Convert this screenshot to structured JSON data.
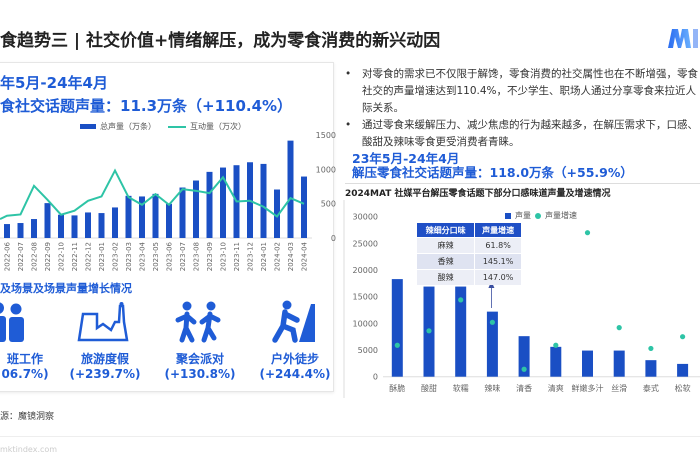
{
  "title": "食趋势三 | 社交价值+情绪解压，成为零食消费的新兴动因",
  "logo": {
    "text": "M",
    "colors": [
      "#2a6cf0",
      "#6ab0ff"
    ]
  },
  "left_panel": {
    "period": "年5月-24年4月",
    "metric": "食社交话题声量：11.3万条（+110.4%）",
    "scene_title": "及场景及场景声量增长情况",
    "scenes": [
      {
        "icon": "office-workers-icon",
        "name": "班工作",
        "pct": "06.7%)"
      },
      {
        "icon": "tourism-landmark-icon",
        "name": "旅游度假",
        "pct": "(+239.7%)"
      },
      {
        "icon": "party-dancers-icon",
        "name": "聚会派对",
        "pct": "(+130.8%)"
      },
      {
        "icon": "hiking-climber-icon",
        "name": "户外徒步",
        "pct": "(+244.4%)"
      }
    ]
  },
  "bullets": [
    "对零食的需求已不仅限于解馋，零食消费的社交属性也在不断增强，零食社交的声量增速达到110.4%，不少学生、职场人通过分享零食来拉近人际关系。",
    "通过零食来缓解压力、减少焦虑的行为越来越多，在解压需求下，口感、酸甜及辣味零食更受消费者青睐。"
  ],
  "right_panel": {
    "period": "23年5月-24年4月",
    "metric": "解压零食社交话题声量：118.0万条（+55.9%）",
    "chart_title": "2024MAT 社媒平台解压零食话题下部分口感味道声量及增速情况",
    "table": {
      "headers": [
        "辣细分口味",
        "声量增速"
      ],
      "rows": [
        [
          "麻辣",
          "61.8%"
        ],
        [
          "香辣",
          "145.1%"
        ],
        [
          "酸辣",
          "147.0%"
        ]
      ]
    }
  },
  "source": "源：魔镜洞察",
  "footer": "mktindex.com",
  "colors": {
    "bar": "#1a4fc4",
    "line": "#2ec4a6",
    "accent": "#1f5cd6"
  },
  "chart_data": [
    {
      "type": "bar+line",
      "categories": [
        "2022-06",
        "2022-07",
        "2022-08",
        "2022-09",
        "2022-10",
        "2022-11",
        "2022-12",
        "2023-01",
        "2023-02",
        "2023-03",
        "2023-04",
        "2023-05",
        "2023-06",
        "2023-07",
        "2023-08",
        "2023-09",
        "2023-10",
        "2023-11",
        "2023-12",
        "2024-01",
        "2024-02",
        "2024-03",
        "2024-04"
      ],
      "series": [
        {
          "name": "总声量（万条）",
          "kind": "bar",
          "values": [
            203,
            218,
            276,
            508,
            339,
            329,
            372,
            363,
            445,
            614,
            605,
            643,
            498,
            735,
            837,
            963,
            1026,
            1060,
            1103,
            1079,
            706,
            1418,
            895
          ]
        },
        {
          "name": "互动量（万次）",
          "kind": "line",
          "values": [
            324,
            343,
            760,
            556,
            339,
            397,
            542,
            605,
            982,
            595,
            484,
            639,
            484,
            711,
            687,
            653,
            885,
            532,
            542,
            455,
            314,
            581,
            498
          ]
        }
      ],
      "y_ticks": [
        "0",
        "500",
        "1000",
        "1500"
      ],
      "ylim": [
        0,
        1500
      ],
      "y_axis_side": "right",
      "legend": "top",
      "grid": false
    },
    {
      "type": "bar+scatter",
      "categories": [
        "酥脆",
        "酸甜",
        "软糯",
        "辣味",
        "清香",
        "清爽",
        "鲜嫩多汁",
        "丝滑",
        "泰式",
        "松软"
      ],
      "series": [
        {
          "name": "声量",
          "kind": "bar",
          "values": [
            18300,
            16900,
            16900,
            12200,
            7600,
            5600,
            4900,
            4900,
            3100,
            2400
          ]
        },
        {
          "name": "声量增速",
          "kind": "scatter",
          "values": [
            5900,
            8600,
            14400,
            10200,
            1400,
            5900,
            27000,
            9200,
            5300,
            7500
          ]
        }
      ],
      "y_ticks": [
        "0",
        "5000",
        "10000",
        "15000",
        "20000",
        "25000",
        "30000"
      ],
      "ylim": [
        0,
        30000
      ],
      "legend": "top",
      "grid": false
    }
  ]
}
